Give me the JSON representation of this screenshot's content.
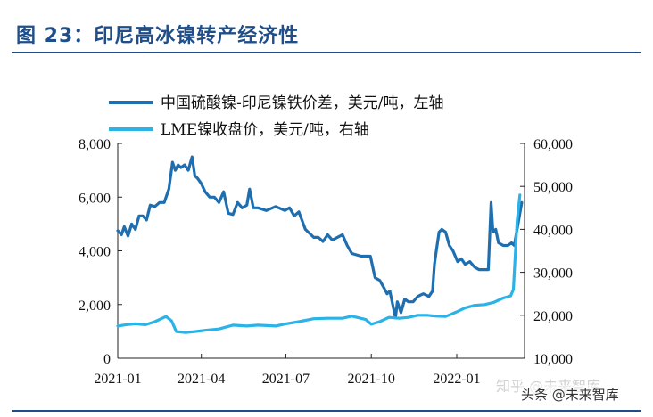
{
  "figure": {
    "title": "图 23：印尼高冰镍转产经济性"
  },
  "watermark": {
    "primary": "头条 @未来智库",
    "faint": "知乎 @未来智库"
  },
  "colors": {
    "series1": "#1f6fb0",
    "series2": "#2bb3e8",
    "title": "#1f4e8a"
  },
  "chart_data": {
    "type": "line",
    "xlabel": "",
    "ylabel": "",
    "x_ticks": [
      "2021-01",
      "2021-04",
      "2021-07",
      "2021-10",
      "2022-01"
    ],
    "x_range": [
      "2021-01-01",
      "2022-03-15"
    ],
    "y_left": {
      "range": [
        0,
        8000
      ],
      "ticks": [
        "0",
        "2,000",
        "4,000",
        "6,000",
        "8,000"
      ]
    },
    "y_right": {
      "range": [
        10000,
        60000
      ],
      "ticks": [
        "10,000",
        "20,000",
        "30,000",
        "40,000",
        "50,000",
        "60,000"
      ]
    },
    "legend_position": "top-left",
    "grid": false,
    "series": [
      {
        "name": "中国硫酸镍-印尼镍铁价差，美元/吨，左轴",
        "axis": "left",
        "color": "#1f6fb0",
        "points": [
          [
            "2021-01-01",
            4750
          ],
          [
            "2021-01-05",
            4600
          ],
          [
            "2021-01-08",
            4900
          ],
          [
            "2021-01-12",
            4550
          ],
          [
            "2021-01-16",
            5000
          ],
          [
            "2021-01-20",
            4800
          ],
          [
            "2021-01-24",
            5300
          ],
          [
            "2021-01-28",
            5300
          ],
          [
            "2021-02-01",
            5150
          ],
          [
            "2021-02-05",
            5700
          ],
          [
            "2021-02-10",
            5650
          ],
          [
            "2021-02-15",
            5800
          ],
          [
            "2021-02-20",
            5800
          ],
          [
            "2021-02-25",
            6300
          ],
          [
            "2021-03-01",
            7300
          ],
          [
            "2021-03-04",
            7000
          ],
          [
            "2021-03-07",
            7200
          ],
          [
            "2021-03-10",
            7100
          ],
          [
            "2021-03-14",
            7200
          ],
          [
            "2021-03-18",
            7000
          ],
          [
            "2021-03-22",
            7500
          ],
          [
            "2021-03-25",
            6800
          ],
          [
            "2021-03-28",
            6700
          ],
          [
            "2021-04-01",
            6500
          ],
          [
            "2021-04-05",
            6200
          ],
          [
            "2021-04-10",
            6000
          ],
          [
            "2021-04-15",
            6000
          ],
          [
            "2021-04-20",
            5800
          ],
          [
            "2021-04-25",
            6200
          ],
          [
            "2021-04-30",
            5400
          ],
          [
            "2021-05-05",
            5350
          ],
          [
            "2021-05-10",
            5800
          ],
          [
            "2021-05-15",
            5600
          ],
          [
            "2021-05-20",
            5700
          ],
          [
            "2021-05-23",
            6300
          ],
          [
            "2021-05-27",
            5600
          ],
          [
            "2021-06-01",
            5600
          ],
          [
            "2021-06-10",
            5500
          ],
          [
            "2021-06-20",
            5650
          ],
          [
            "2021-06-30",
            5500
          ],
          [
            "2021-07-05",
            5600
          ],
          [
            "2021-07-10",
            5300
          ],
          [
            "2021-07-15",
            5450
          ],
          [
            "2021-07-22",
            4800
          ],
          [
            "2021-07-31",
            4500
          ],
          [
            "2021-08-05",
            4500
          ],
          [
            "2021-08-10",
            4350
          ],
          [
            "2021-08-15",
            4600
          ],
          [
            "2021-08-20",
            4400
          ],
          [
            "2021-08-31",
            4600
          ],
          [
            "2021-09-05",
            4200
          ],
          [
            "2021-09-10",
            3900
          ],
          [
            "2021-09-20",
            3800
          ],
          [
            "2021-09-30",
            3800
          ],
          [
            "2021-10-05",
            3000
          ],
          [
            "2021-10-10",
            2900
          ],
          [
            "2021-10-15",
            2600
          ],
          [
            "2021-10-18",
            2400
          ],
          [
            "2021-10-21",
            2500
          ],
          [
            "2021-10-24",
            2000
          ],
          [
            "2021-10-27",
            1500
          ],
          [
            "2021-10-29",
            2100
          ],
          [
            "2021-11-02",
            1700
          ],
          [
            "2021-11-06",
            2200
          ],
          [
            "2021-11-10",
            2100
          ],
          [
            "2021-11-15",
            2100
          ],
          [
            "2021-11-20",
            2300
          ],
          [
            "2021-11-26",
            2400
          ],
          [
            "2021-12-02",
            2300
          ],
          [
            "2021-12-06",
            2500
          ],
          [
            "2021-12-08",
            3500
          ],
          [
            "2021-12-10",
            4000
          ],
          [
            "2021-12-13",
            4700
          ],
          [
            "2021-12-16",
            4800
          ],
          [
            "2021-12-20",
            4700
          ],
          [
            "2021-12-24",
            4200
          ],
          [
            "2021-12-28",
            4000
          ],
          [
            "2022-01-02",
            3600
          ],
          [
            "2022-01-06",
            3700
          ],
          [
            "2022-01-10",
            3500
          ],
          [
            "2022-01-15",
            3600
          ],
          [
            "2022-01-20",
            3400
          ],
          [
            "2022-01-25",
            3300
          ],
          [
            "2022-02-01",
            3300
          ],
          [
            "2022-02-04",
            3300
          ],
          [
            "2022-02-07",
            5800
          ],
          [
            "2022-02-09",
            4700
          ],
          [
            "2022-02-12",
            4800
          ],
          [
            "2022-02-15",
            4300
          ],
          [
            "2022-02-20",
            4200
          ],
          [
            "2022-02-25",
            4200
          ],
          [
            "2022-03-01",
            4300
          ],
          [
            "2022-03-04",
            4200
          ],
          [
            "2022-03-08",
            5000
          ],
          [
            "2022-03-12",
            5800
          ]
        ]
      },
      {
        "name": "LME镍收盘价，美元/吨，右轴",
        "axis": "right",
        "color": "#2bb3e8",
        "points": [
          [
            "2021-01-01",
            17500
          ],
          [
            "2021-01-10",
            17800
          ],
          [
            "2021-01-20",
            18000
          ],
          [
            "2021-01-31",
            17800
          ],
          [
            "2021-02-10",
            18500
          ],
          [
            "2021-02-22",
            19700
          ],
          [
            "2021-02-28",
            18700
          ],
          [
            "2021-03-05",
            16200
          ],
          [
            "2021-03-15",
            16000
          ],
          [
            "2021-03-25",
            16200
          ],
          [
            "2021-04-05",
            16500
          ],
          [
            "2021-04-20",
            16800
          ],
          [
            "2021-05-05",
            17700
          ],
          [
            "2021-05-20",
            17500
          ],
          [
            "2021-06-01",
            17700
          ],
          [
            "2021-06-20",
            17500
          ],
          [
            "2021-07-01",
            18000
          ],
          [
            "2021-07-15",
            18500
          ],
          [
            "2021-07-31",
            19200
          ],
          [
            "2021-08-15",
            19300
          ],
          [
            "2021-08-31",
            19300
          ],
          [
            "2021-09-10",
            19800
          ],
          [
            "2021-09-25",
            19000
          ],
          [
            "2021-10-01",
            17900
          ],
          [
            "2021-10-10",
            18500
          ],
          [
            "2021-10-20",
            19500
          ],
          [
            "2021-10-31",
            19300
          ],
          [
            "2021-11-10",
            19500
          ],
          [
            "2021-11-20",
            20000
          ],
          [
            "2021-11-30",
            20000
          ],
          [
            "2021-12-10",
            19800
          ],
          [
            "2021-12-20",
            19700
          ],
          [
            "2021-12-31",
            20700
          ],
          [
            "2022-01-10",
            21700
          ],
          [
            "2022-01-20",
            22300
          ],
          [
            "2022-01-31",
            22500
          ],
          [
            "2022-02-10",
            23000
          ],
          [
            "2022-02-20",
            24000
          ],
          [
            "2022-02-28",
            24500
          ],
          [
            "2022-03-03",
            26000
          ],
          [
            "2022-03-07",
            42000
          ],
          [
            "2022-03-10",
            48000
          ]
        ]
      }
    ]
  }
}
